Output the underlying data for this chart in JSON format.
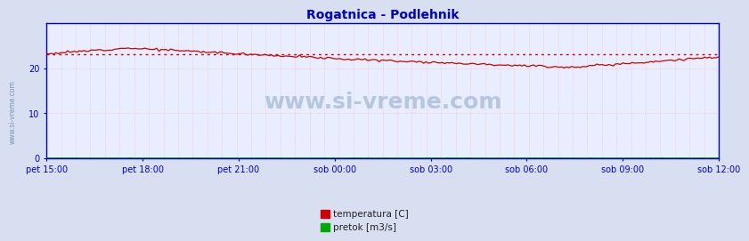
{
  "title": "Rogatnica - Podlehnik",
  "title_color": "#0000cc",
  "title_fontsize": 10,
  "bg_color": "#d8dff0",
  "plot_bg_color": "#e8eeff",
  "ylim": [
    0,
    30
  ],
  "yticks": [
    0,
    10,
    20
  ],
  "xtick_labels": [
    "pet 15:00",
    "pet 18:00",
    "pet 21:00",
    "sob 00:00",
    "sob 03:00",
    "sob 06:00",
    "sob 09:00",
    "sob 12:00"
  ],
  "grid_color": "#ffaaaa",
  "watermark": "www.si-vreme.com",
  "side_label": "www.si-vreme.com",
  "legend_items": [
    {
      "label": "temperatura [C]",
      "color": "#cc0000"
    },
    {
      "label": "pretok [m3/s]",
      "color": "#00aa00"
    }
  ],
  "avg_line": 23.1,
  "n_points": 288,
  "spine_color": "#0000cc",
  "tick_color": "#0000cc",
  "tick_fontsize": 7,
  "watermark_color": "#7799bb",
  "watermark_alpha": 0.45,
  "watermark_fontsize": 18
}
